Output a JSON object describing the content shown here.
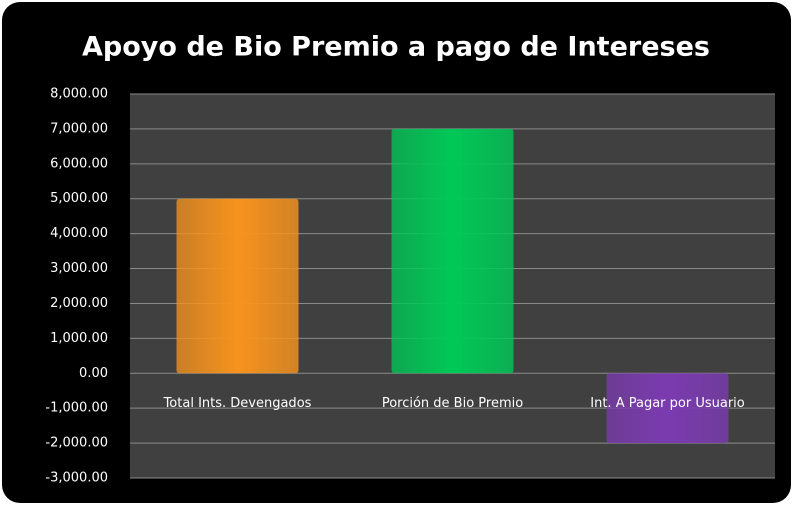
{
  "chart_data": {
    "type": "bar",
    "title": "Apoyo de Bio Premio a pago de Intereses",
    "categories": [
      "Total Ints. Devengados",
      "Porción de Bio Premio",
      "Int. A Pagar por Usuario"
    ],
    "values": [
      5000,
      7000,
      -2000
    ],
    "colors": [
      "#f7931e",
      "#00c957",
      "#7b3bb0"
    ],
    "ylim": [
      -3000,
      8000
    ],
    "yticks": [
      {
        "value": -3000,
        "label": "-3,000.00"
      },
      {
        "value": -2000,
        "label": "-2,000.00"
      },
      {
        "value": -1000,
        "label": "-1,000.00"
      },
      {
        "value": 0,
        "label": "0.00"
      },
      {
        "value": 1000,
        "label": "1,000.00"
      },
      {
        "value": 2000,
        "label": "2,000.00"
      },
      {
        "value": 3000,
        "label": "3,000.00"
      },
      {
        "value": 4000,
        "label": "4,000.00"
      },
      {
        "value": 5000,
        "label": "5,000.00"
      },
      {
        "value": 6000,
        "label": "6,000.00"
      },
      {
        "value": 7000,
        "label": "7,000.00"
      },
      {
        "value": 8000,
        "label": "8,000.00"
      }
    ],
    "grid": true
  }
}
